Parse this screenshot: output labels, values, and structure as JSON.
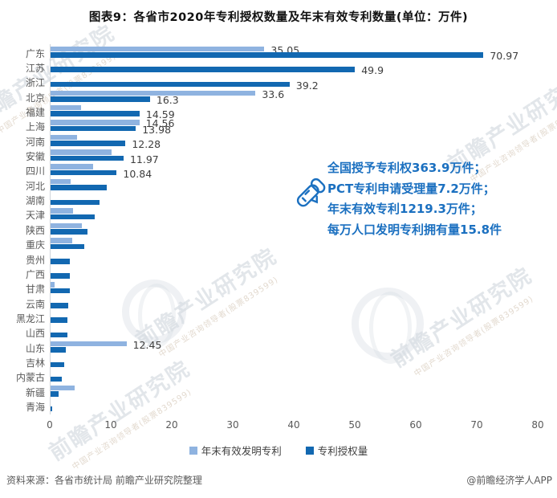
{
  "title": "图表9：各省市2020年专利授权数量及年末有效专利数量(单位：万件)",
  "chart_data": {
    "type": "bar",
    "orientation": "horizontal",
    "unit": "万件",
    "xlim": [
      0,
      80
    ],
    "x_ticks": [
      "0",
      "10",
      "20",
      "30",
      "40",
      "50",
      "60",
      "70",
      "80"
    ],
    "grid": false,
    "legend_position": "bottom",
    "series_names": [
      "年末有效发明专利",
      "专利授权量"
    ],
    "provinces": [
      {
        "name": "广东",
        "light": 35.05,
        "dark": 70.97,
        "light_label": "35.05",
        "dark_label": "70.97"
      },
      {
        "name": "江苏",
        "light": null,
        "dark": 49.9,
        "light_label": null,
        "dark_label": "49.9"
      },
      {
        "name": "浙江",
        "light": null,
        "dark": 39.2,
        "light_label": null,
        "dark_label": "39.2"
      },
      {
        "name": "北京",
        "light": 33.6,
        "dark": 16.3,
        "light_label": "33.6",
        "dark_label": "16.3"
      },
      {
        "name": "福建",
        "light": 5.0,
        "dark": 14.59,
        "light_label": null,
        "dark_label": "14.59"
      },
      {
        "name": "上海",
        "light": 14.56,
        "dark": 13.98,
        "light_label": "14.56",
        "dark_label": "13.98"
      },
      {
        "name": "河南",
        "light": 4.4,
        "dark": 12.28,
        "light_label": null,
        "dark_label": "12.28"
      },
      {
        "name": "安徽",
        "light": 10.0,
        "dark": 11.97,
        "light_label": null,
        "dark_label": "11.97"
      },
      {
        "name": "四川",
        "light": 7.0,
        "dark": 10.84,
        "light_label": null,
        "dark_label": "10.84"
      },
      {
        "name": "河北",
        "light": 3.3,
        "dark": 9.2,
        "light_label": null,
        "dark_label": null
      },
      {
        "name": "湖南",
        "light": null,
        "dark": 8.0,
        "light_label": null,
        "dark_label": null
      },
      {
        "name": "天津",
        "light": 3.7,
        "dark": 7.3,
        "light_label": null,
        "dark_label": null
      },
      {
        "name": "陕西",
        "light": 5.1,
        "dark": 6.1,
        "light_label": null,
        "dark_label": null
      },
      {
        "name": "重庆",
        "light": 3.5,
        "dark": 5.5,
        "light_label": null,
        "dark_label": null
      },
      {
        "name": "贵州",
        "light": null,
        "dark": 3.2,
        "light_label": null,
        "dark_label": null
      },
      {
        "name": "广西",
        "light": null,
        "dark": 3.2,
        "light_label": null,
        "dark_label": null
      },
      {
        "name": "甘肃",
        "light": 0.7,
        "dark": 3.1,
        "light_label": null,
        "dark_label": null
      },
      {
        "name": "云南",
        "light": null,
        "dark": 2.9,
        "light_label": null,
        "dark_label": null
      },
      {
        "name": "黑龙江",
        "light": null,
        "dark": 2.8,
        "light_label": null,
        "dark_label": null
      },
      {
        "name": "山西",
        "light": null,
        "dark": 2.7,
        "light_label": null,
        "dark_label": null
      },
      {
        "name": "山东",
        "light": 12.45,
        "dark": 2.5,
        "light_label": "12.45",
        "dark_label": null
      },
      {
        "name": "吉林",
        "light": null,
        "dark": 2.3,
        "light_label": null,
        "dark_label": null
      },
      {
        "name": "内蒙古",
        "light": null,
        "dark": 1.9,
        "light_label": null,
        "dark_label": null
      },
      {
        "name": "新疆",
        "light": 4.0,
        "dark": 1.3,
        "light_label": null,
        "dark_label": null
      },
      {
        "name": "青海",
        "light": null,
        "dark": 0.3,
        "light_label": null,
        "dark_label": null
      }
    ]
  },
  "legend": {
    "items": [
      {
        "label": "年末有效发明专利",
        "color": "#8FB3E0"
      },
      {
        "label": "专利授权量",
        "color": "#1268B1"
      }
    ]
  },
  "annotation": {
    "icon": "telescope-icon",
    "lines": [
      "全国授予专利权363.9万件；",
      "PCT专利申请受理量7.2万件；",
      "年末有效专利1219.3万件；",
      "每万人口发明专利拥有量15.8件"
    ]
  },
  "footer": {
    "source": "资料来源：各省市统计局 前瞻产业研究院整理",
    "credit": "@前瞻经济学人APP"
  },
  "watermark": {
    "text": "前瞻产业研究院",
    "subtext": "中国产业咨询领导者(股票839599)"
  },
  "colors": {
    "light_bar": "#8FB3E0",
    "dark_bar": "#1268B1",
    "annotation_blue": "#1B70C0",
    "label_gray": "#595959",
    "value_gray": "#3d3d3d"
  }
}
